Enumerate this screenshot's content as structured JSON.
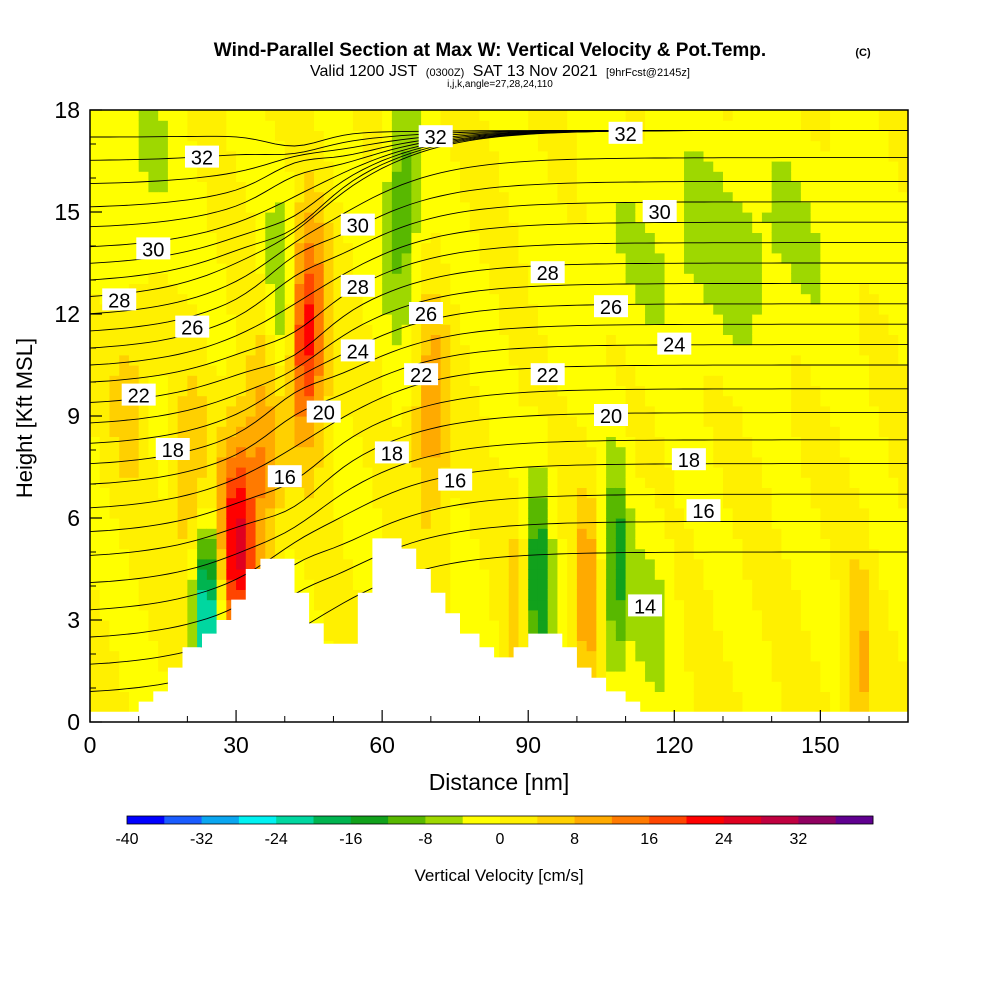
{
  "header": {
    "title": "Wind-Parallel Section at Max W: Vertical Velocity & Pot.Temp.",
    "copyright": "(C)",
    "valid_prefix": "Valid 1200 JST",
    "valid_utc": "(0300Z)",
    "valid_date": "SAT 13 Nov 2021",
    "forecast_info": "[9hrFcst@2145z]",
    "indices": "i,j,k,angle=27,28,24,110"
  },
  "chart_data": {
    "type": "heatmap",
    "title": "Wind-Parallel Section at Max W: Vertical Velocity & Pot.Temp.",
    "xlabel": "Distance [nm]",
    "ylabel": "Height [Kft MSL]",
    "xlim": [
      0,
      168
    ],
    "ylim": [
      0,
      18
    ],
    "x_ticks": [
      0,
      30,
      60,
      90,
      120,
      150
    ],
    "y_ticks": [
      0,
      3,
      6,
      9,
      12,
      15,
      18
    ],
    "grid": false,
    "velocity": {
      "colorbar_label": "Vertical Velocity [cm/s]",
      "levels": [
        -40,
        -36,
        -32,
        -28,
        -24,
        -20,
        -16,
        -12,
        -8,
        -4,
        0,
        4,
        8,
        12,
        16,
        20,
        24,
        28,
        32,
        36
      ],
      "tick_labels": [
        "-40",
        "-32",
        "-24",
        "-16",
        "-8",
        "0",
        "8",
        "16",
        "24",
        "32"
      ],
      "colors": [
        "#0000ff",
        "#1a5cff",
        "#0aa6f0",
        "#00f2f2",
        "#00d7a0",
        "#00b450",
        "#11a11c",
        "#58b800",
        "#9ed800",
        "#ffff00",
        "#fff000",
        "#ffd000",
        "#ffaa00",
        "#ff7a00",
        "#ff4500",
        "#ff0000",
        "#e00020",
        "#c00040",
        "#900060",
        "#600090"
      ],
      "background_level": 0,
      "updrafts": [
        {
          "x": 44,
          "y": 11.5,
          "w": 4.5,
          "peak": 26
        },
        {
          "x": 30,
          "y": 5.2,
          "w": 4,
          "peak": 24
        },
        {
          "x": 36,
          "y": 8,
          "w": 4,
          "peak": 12
        },
        {
          "x": 21,
          "y": 6.5,
          "w": 3.5,
          "peak": 10
        },
        {
          "x": 70,
          "y": 9,
          "w": 3.5,
          "peak": 12
        },
        {
          "x": 8,
          "y": 10,
          "w": 4,
          "peak": 6
        },
        {
          "x": 102,
          "y": 3.5,
          "w": 2.5,
          "peak": 12
        },
        {
          "x": 158,
          "y": 1.2,
          "w": 2.5,
          "peak": 10
        },
        {
          "x": 88,
          "y": 3.5,
          "w": 3,
          "peak": 6
        }
      ],
      "downdrafts": [
        {
          "x": 40,
          "y": 12,
          "w": 3.5,
          "peak": -16
        },
        {
          "x": 24,
          "y": 3,
          "w": 3,
          "peak": -28
        },
        {
          "x": 64,
          "y": 15,
          "w": 3.5,
          "peak": -12
        },
        {
          "x": 92,
          "y": 3.8,
          "w": 2.5,
          "peak": -18
        },
        {
          "x": 108,
          "y": 4.5,
          "w": 2.5,
          "peak": -14
        },
        {
          "x": 130,
          "y": 14,
          "w": 25,
          "peak": -6
        },
        {
          "x": 10,
          "y": 16,
          "w": 8,
          "peak": -5
        },
        {
          "x": 115,
          "y": 3,
          "w": 5,
          "peak": -5
        }
      ]
    },
    "potential_temperature": {
      "label_values": [
        14,
        16,
        18,
        20,
        22,
        24,
        26,
        28,
        30,
        32
      ],
      "label_positions": [
        {
          "value": 32,
          "x": 23,
          "y": 16.6
        },
        {
          "value": 32,
          "x": 71,
          "y": 17.2
        },
        {
          "value": 32,
          "x": 110,
          "y": 17.3
        },
        {
          "value": 30,
          "x": 13,
          "y": 13.9
        },
        {
          "value": 30,
          "x": 55,
          "y": 14.6
        },
        {
          "value": 30,
          "x": 117,
          "y": 15
        },
        {
          "value": 28,
          "x": 6,
          "y": 12.4
        },
        {
          "value": 28,
          "x": 55,
          "y": 12.8
        },
        {
          "value": 28,
          "x": 94,
          "y": 13.2
        },
        {
          "value": 26,
          "x": 21,
          "y": 11.6
        },
        {
          "value": 26,
          "x": 69,
          "y": 12
        },
        {
          "value": 26,
          "x": 107,
          "y": 12.2
        },
        {
          "value": 24,
          "x": 55,
          "y": 10.9
        },
        {
          "value": 24,
          "x": 120,
          "y": 11.1
        },
        {
          "value": 22,
          "x": 10,
          "y": 9.6
        },
        {
          "value": 22,
          "x": 68,
          "y": 10.2
        },
        {
          "value": 22,
          "x": 94,
          "y": 10.2
        },
        {
          "value": 20,
          "x": 48,
          "y": 9.1
        },
        {
          "value": 20,
          "x": 107,
          "y": 9
        },
        {
          "value": 18,
          "x": 17,
          "y": 8
        },
        {
          "value": 18,
          "x": 62,
          "y": 7.9
        },
        {
          "value": 18,
          "x": 123,
          "y": 7.7
        },
        {
          "value": 16,
          "x": 40,
          "y": 7.2
        },
        {
          "value": 16,
          "x": 75,
          "y": 7.1
        },
        {
          "value": 16,
          "x": 126,
          "y": 6.2
        },
        {
          "value": 14,
          "x": 114,
          "y": 3.4
        }
      ],
      "line_heights_upstream": [
        0.8,
        1.6,
        2.4,
        3.2,
        4.0,
        4.8,
        5.5,
        6.2,
        6.9,
        7.5,
        8.1,
        8.7,
        9.3,
        9.9,
        10.4,
        10.9,
        11.4,
        11.9,
        12.4,
        12.9,
        13.4,
        13.9,
        14.5,
        15.1,
        15.8,
        16.5,
        17.2
      ],
      "line_heights_downstream": [
        5.0,
        5.9,
        6.7,
        7.6,
        8.3,
        9.1,
        9.8,
        10.5,
        11.1,
        11.7,
        12.3,
        12.9,
        13.5,
        14.1,
        14.7,
        15.3,
        15.9,
        16.6,
        17.4
      ]
    },
    "terrain": [
      {
        "x": 0,
        "y": 0.3
      },
      {
        "x": 10,
        "y": 0.3
      },
      {
        "x": 10,
        "y": 0.6
      },
      {
        "x": 13,
        "y": 0.6
      },
      {
        "x": 13,
        "y": 0.9
      },
      {
        "x": 16,
        "y": 0.9
      },
      {
        "x": 16,
        "y": 1.6
      },
      {
        "x": 19,
        "y": 1.6
      },
      {
        "x": 19,
        "y": 2.2
      },
      {
        "x": 23,
        "y": 2.2
      },
      {
        "x": 23,
        "y": 2.6
      },
      {
        "x": 26,
        "y": 2.6
      },
      {
        "x": 26,
        "y": 3.0
      },
      {
        "x": 29,
        "y": 3.0
      },
      {
        "x": 29,
        "y": 3.6
      },
      {
        "x": 32,
        "y": 3.6
      },
      {
        "x": 32,
        "y": 4.5
      },
      {
        "x": 35,
        "y": 4.5
      },
      {
        "x": 35,
        "y": 4.8
      },
      {
        "x": 42,
        "y": 4.8
      },
      {
        "x": 42,
        "y": 3.8
      },
      {
        "x": 45,
        "y": 3.8
      },
      {
        "x": 45,
        "y": 2.9
      },
      {
        "x": 48,
        "y": 2.9
      },
      {
        "x": 48,
        "y": 2.3
      },
      {
        "x": 55,
        "y": 2.3
      },
      {
        "x": 55,
        "y": 3.8
      },
      {
        "x": 58,
        "y": 3.8
      },
      {
        "x": 58,
        "y": 5.4
      },
      {
        "x": 64,
        "y": 5.4
      },
      {
        "x": 64,
        "y": 5.1
      },
      {
        "x": 67,
        "y": 5.1
      },
      {
        "x": 67,
        "y": 4.5
      },
      {
        "x": 70,
        "y": 4.5
      },
      {
        "x": 70,
        "y": 3.8
      },
      {
        "x": 73,
        "y": 3.8
      },
      {
        "x": 73,
        "y": 3.2
      },
      {
        "x": 76,
        "y": 3.2
      },
      {
        "x": 76,
        "y": 2.6
      },
      {
        "x": 80,
        "y": 2.6
      },
      {
        "x": 80,
        "y": 2.2
      },
      {
        "x": 83,
        "y": 2.2
      },
      {
        "x": 83,
        "y": 1.9
      },
      {
        "x": 87,
        "y": 1.9
      },
      {
        "x": 87,
        "y": 2.2
      },
      {
        "x": 90,
        "y": 2.2
      },
      {
        "x": 90,
        "y": 2.6
      },
      {
        "x": 97,
        "y": 2.6
      },
      {
        "x": 97,
        "y": 2.2
      },
      {
        "x": 100,
        "y": 2.2
      },
      {
        "x": 100,
        "y": 1.6
      },
      {
        "x": 103,
        "y": 1.6
      },
      {
        "x": 103,
        "y": 1.3
      },
      {
        "x": 106,
        "y": 1.3
      },
      {
        "x": 106,
        "y": 0.9
      },
      {
        "x": 110,
        "y": 0.9
      },
      {
        "x": 110,
        "y": 0.6
      },
      {
        "x": 113,
        "y": 0.6
      },
      {
        "x": 113,
        "y": 0.3
      },
      {
        "x": 168,
        "y": 0.3
      }
    ]
  }
}
